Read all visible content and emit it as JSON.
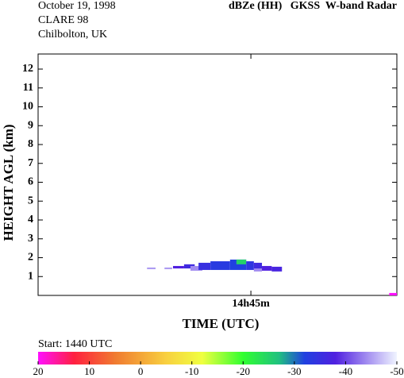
{
  "chart_data": {
    "type": "heatmap",
    "header": [
      "October 19, 1998",
      "CLARE 98",
      "Chilbolton, UK"
    ],
    "title": "dBZe (HH)   GKSS  W-band Radar",
    "x_label": "TIME (UTC)",
    "y_label": "HEIGHT AGL (km)",
    "start_label": "Start: 1440 UTC",
    "xlim": [
      0,
      8.43
    ],
    "xticks": [
      {
        "value": 5,
        "label": "14h45m"
      }
    ],
    "ylim": [
      0,
      12.8
    ],
    "yticks": [
      1,
      2,
      3,
      4,
      5,
      6,
      7,
      8,
      9,
      10,
      11,
      12
    ],
    "cells": [
      {
        "t0": 2.56,
        "t1": 2.76,
        "h0": 1.39,
        "h1": 1.48,
        "dbz": -45
      },
      {
        "t0": 2.97,
        "t1": 3.15,
        "h0": 1.39,
        "h1": 1.48,
        "dbz": -45
      },
      {
        "t0": 3.17,
        "t1": 3.43,
        "h0": 1.43,
        "h1": 1.56,
        "dbz": -38
      },
      {
        "t0": 3.43,
        "t1": 3.68,
        "h0": 1.43,
        "h1": 1.65,
        "dbz": -36
      },
      {
        "t0": 3.58,
        "t1": 3.86,
        "h0": 1.31,
        "h1": 1.56,
        "dbz": -44
      },
      {
        "t0": 3.77,
        "t1": 4.05,
        "h0": 1.35,
        "h1": 1.73,
        "dbz": -35
      },
      {
        "t0": 4.05,
        "t1": 4.51,
        "h0": 1.35,
        "h1": 1.81,
        "dbz": -33
      },
      {
        "t0": 4.51,
        "t1": 4.89,
        "h0": 1.35,
        "h1": 1.9,
        "dbz": -32
      },
      {
        "t0": 4.66,
        "t1": 4.89,
        "h0": 1.65,
        "h1": 1.9,
        "dbz": -25
      },
      {
        "t0": 4.89,
        "t1": 5.07,
        "h0": 1.35,
        "h1": 1.81,
        "dbz": -34
      },
      {
        "t0": 5.07,
        "t1": 5.26,
        "h0": 1.35,
        "h1": 1.73,
        "dbz": -36
      },
      {
        "t0": 5.07,
        "t1": 5.26,
        "h0": 1.27,
        "h1": 1.43,
        "dbz": -44
      },
      {
        "t0": 5.26,
        "t1": 5.49,
        "h0": 1.31,
        "h1": 1.56,
        "dbz": -38
      },
      {
        "t0": 5.49,
        "t1": 5.73,
        "h0": 1.27,
        "h1": 1.52,
        "dbz": -37
      },
      {
        "t0": 8.25,
        "t1": 8.43,
        "h0": 0,
        "h1": 0.13,
        "dbz": 20
      }
    ],
    "clim": [
      20,
      -50
    ],
    "cticks": [
      20,
      10,
      0,
      -10,
      -20,
      -30,
      -40,
      -50
    ],
    "colormap": [
      {
        "value": 20,
        "color": "#ff10ff"
      },
      {
        "value": 13,
        "color": "#ff2040"
      },
      {
        "value": 5,
        "color": "#f07a30"
      },
      {
        "value": -5,
        "color": "#f8d040"
      },
      {
        "value": -12,
        "color": "#f0ff40"
      },
      {
        "value": -20,
        "color": "#30ff30"
      },
      {
        "value": -27,
        "color": "#20c080"
      },
      {
        "value": -32,
        "color": "#2040e0"
      },
      {
        "value": -38,
        "color": "#5020e0"
      },
      {
        "value": -50,
        "color": "#f0f4ff"
      }
    ]
  }
}
